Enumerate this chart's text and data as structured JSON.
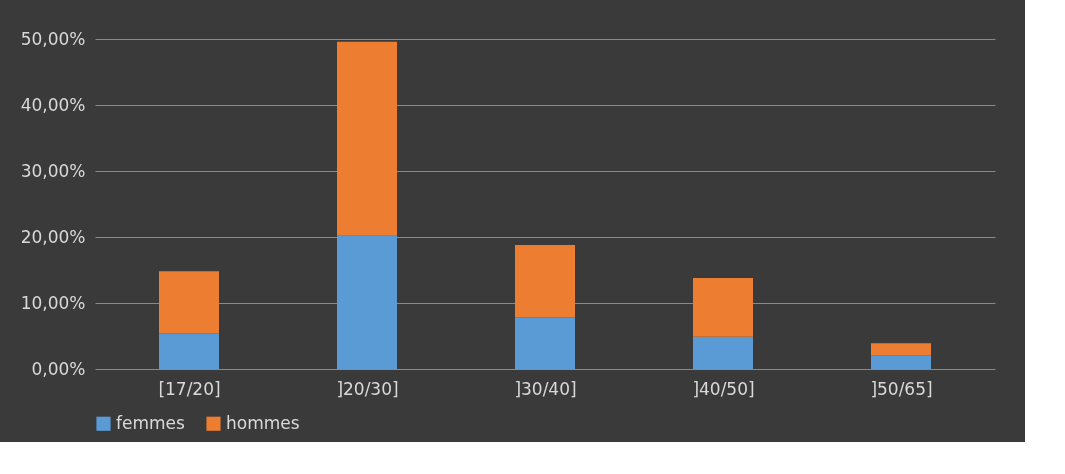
{
  "chart_data": {
    "type": "bar",
    "stacked": true,
    "categories": [
      "[17/20]",
      "]20/30]",
      "]30/40]",
      "]40/50]",
      "]50/65]"
    ],
    "series": [
      {
        "name": "femmes",
        "color": "#5b9bd5",
        "values": [
          5.4,
          20.2,
          7.8,
          4.9,
          2.1
        ]
      },
      {
        "name": "hommes",
        "color": "#ed7d31",
        "values": [
          9.4,
          29.4,
          11.0,
          8.9,
          1.8
        ]
      }
    ],
    "ylim": [
      0,
      50
    ],
    "yticks": [
      {
        "value": 0,
        "label": "0,00%"
      },
      {
        "value": 10,
        "label": "10,00%"
      },
      {
        "value": 20,
        "label": "20,00%"
      },
      {
        "value": 30,
        "label": "30,00%"
      },
      {
        "value": 40,
        "label": "40,00%"
      },
      {
        "value": 50,
        "label": "50,00%"
      }
    ],
    "grid": "y",
    "legend": "bottom"
  }
}
